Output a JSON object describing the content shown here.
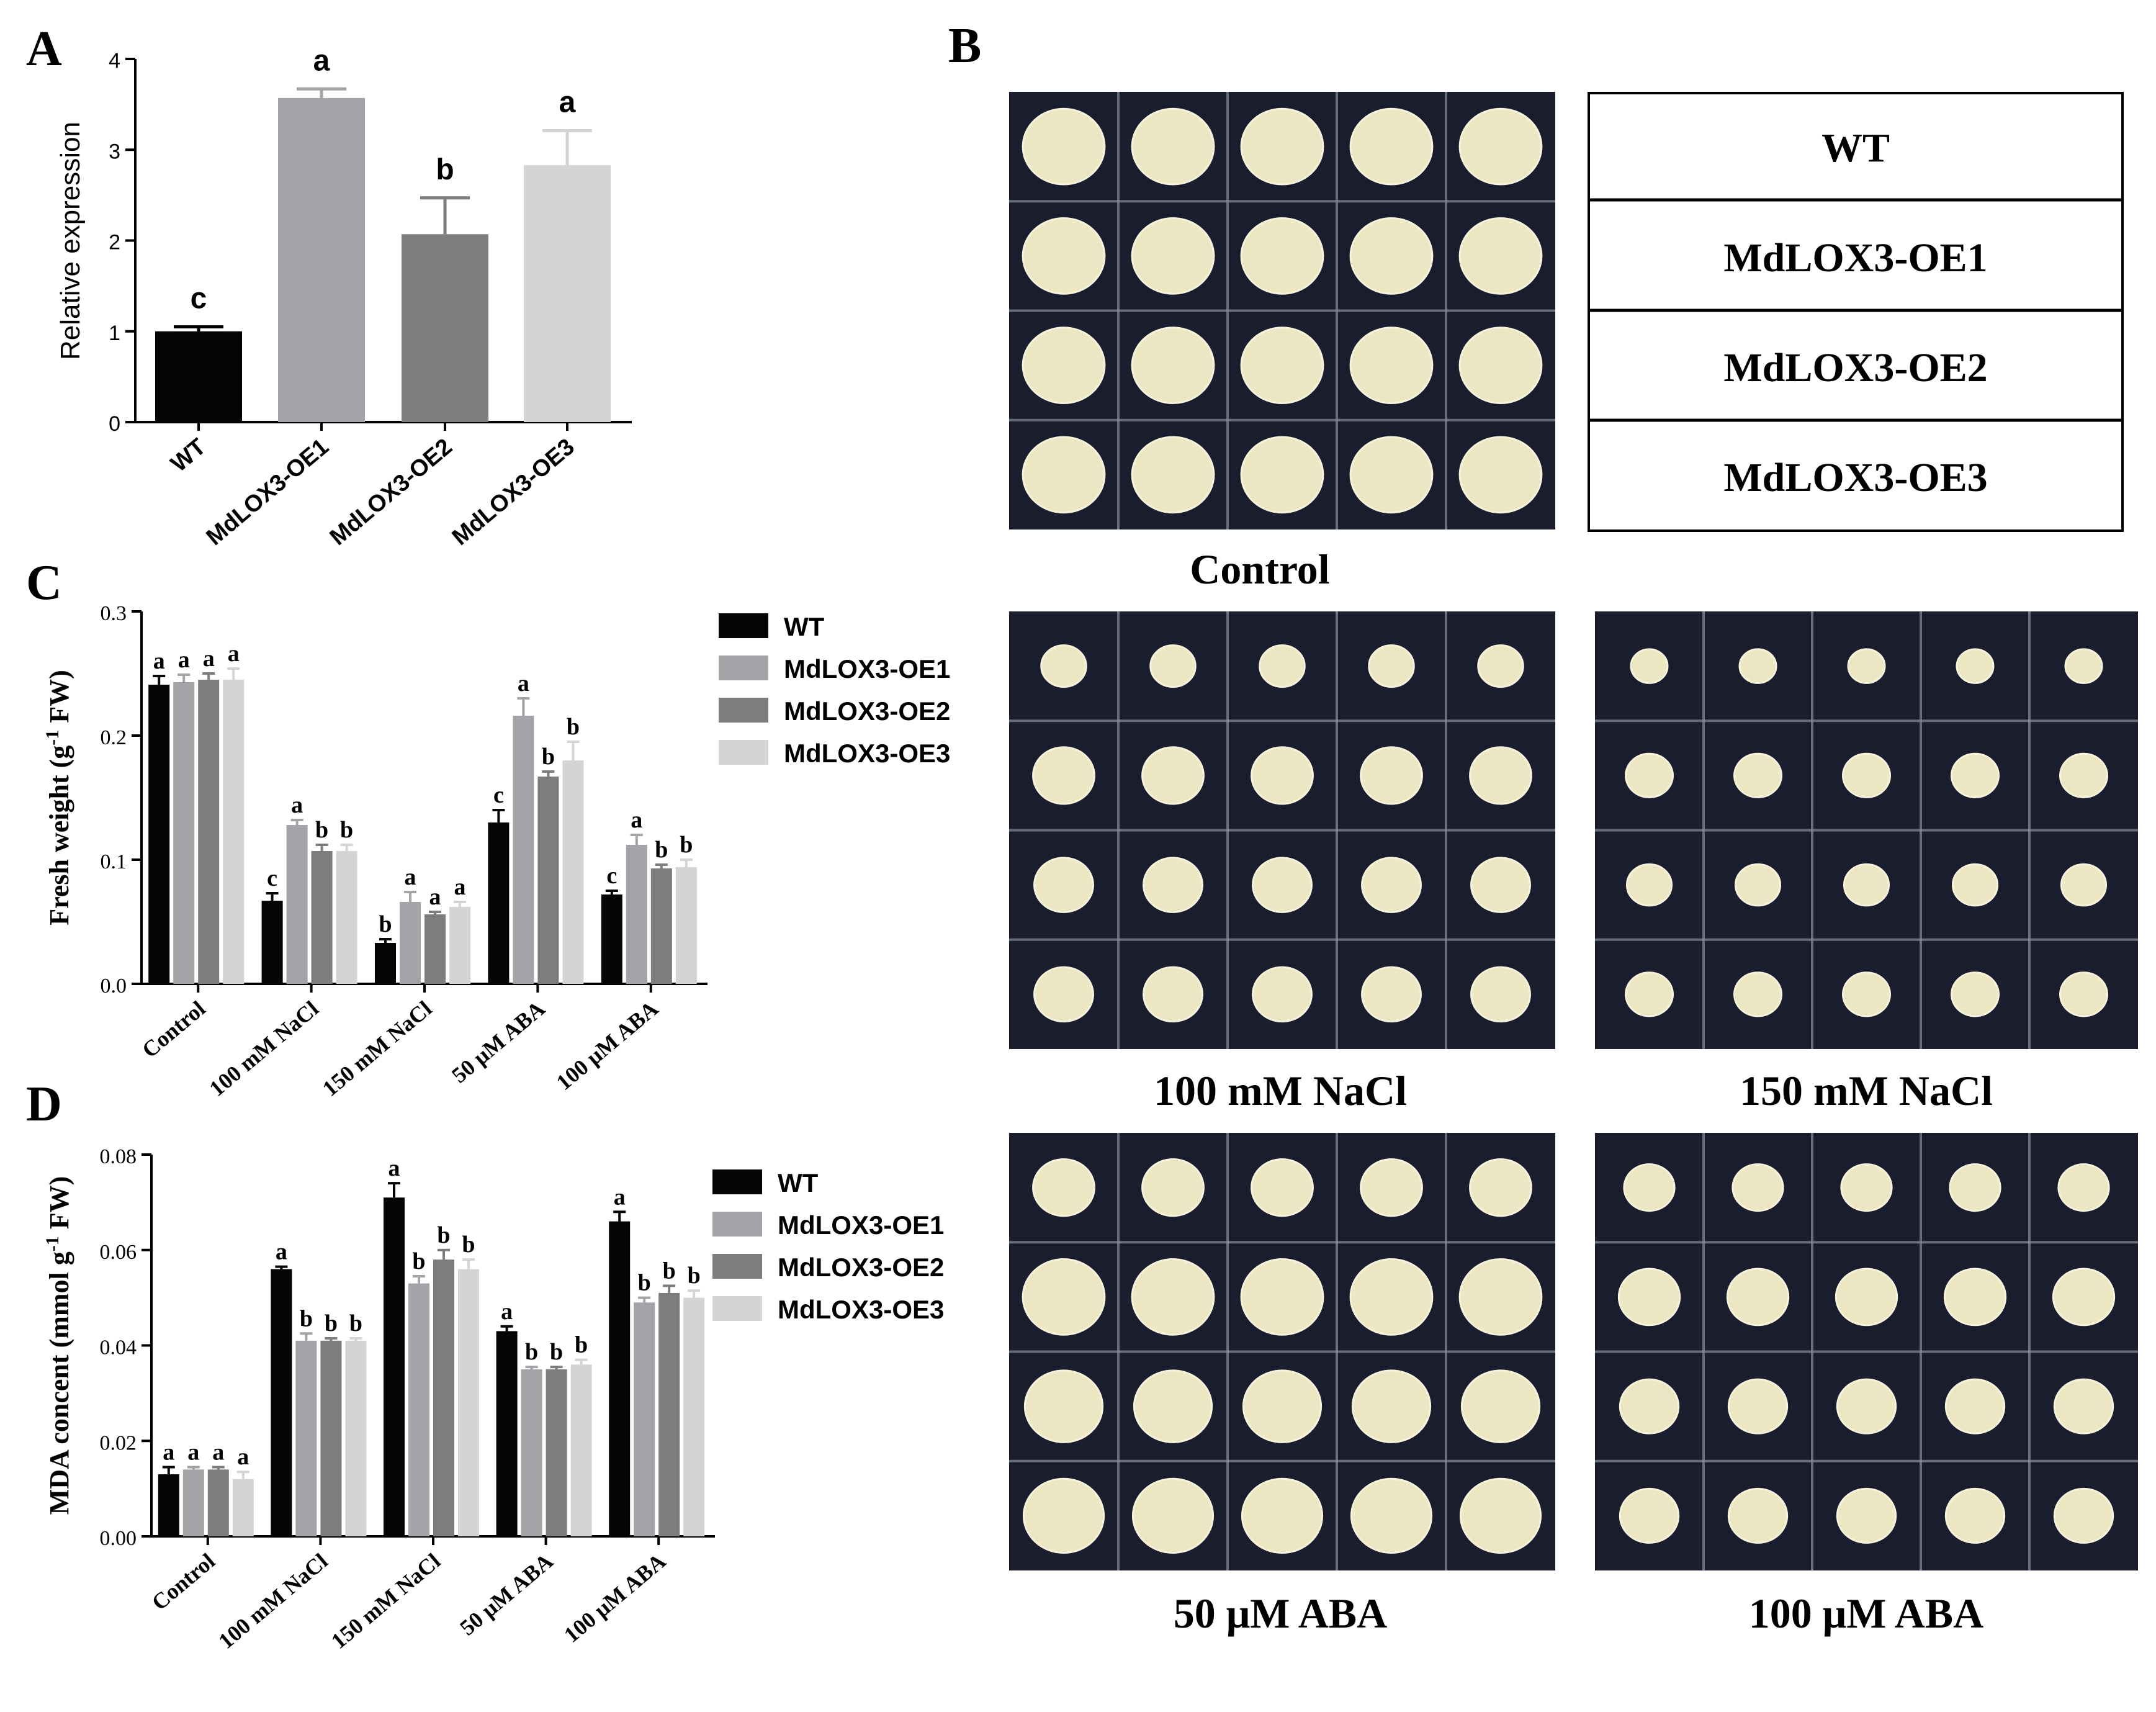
{
  "colors": {
    "WT": "#050505",
    "MdLOX3-OE1": "#a3a3a8",
    "MdLOX3-OE2": "#7d7d7f",
    "MdLOX3-OE3": "#d4d4d6",
    "callus": "#ece6c2",
    "plate": "#1a1d2e"
  },
  "chart_data": [
    {
      "panel": "A",
      "type": "bar",
      "title": "",
      "xlabel": "",
      "ylabel": "Relative expression",
      "ylim": [
        0,
        4
      ],
      "yticks": [
        "0",
        "1",
        "2",
        "3",
        "4"
      ],
      "categories": [
        "WT",
        "MdLOX3-OE1",
        "MdLOX3-OE2",
        "MdLOX3-OE3"
      ],
      "values": [
        1.0,
        3.57,
        2.07,
        2.83
      ],
      "errors": [
        0.05,
        0.1,
        0.4,
        0.38
      ],
      "letters": [
        "c",
        "a",
        "b",
        "a"
      ]
    },
    {
      "panel": "C",
      "type": "bar",
      "title": "",
      "xlabel": "",
      "ylabel": "Fresh weight (g",
      "ylabel_sup": "-1",
      "ylabel_end": "FW)",
      "ylim": [
        0,
        0.3
      ],
      "yticks": [
        "0.0",
        "0.1",
        "0.2",
        "0.3"
      ],
      "categories": [
        "Control",
        "100 mM NaCl",
        "150 mM NaCl",
        "50 μM ABA",
        "100 μM ABA"
      ],
      "legend": [
        "WT",
        "MdLOX3-OE1",
        "MdLOX3-OE2",
        "MdLOX3-OE3"
      ],
      "series": [
        {
          "name": "WT",
          "values": [
            0.241,
            0.067,
            0.033,
            0.13,
            0.072
          ],
          "errors": [
            0.007,
            0.006,
            0.003,
            0.01,
            0.003
          ],
          "letters": [
            "a",
            "c",
            "b",
            "c",
            "c"
          ]
        },
        {
          "name": "MdLOX3-OE1",
          "values": [
            0.243,
            0.128,
            0.066,
            0.216,
            0.112
          ],
          "errors": [
            0.006,
            0.004,
            0.008,
            0.014,
            0.008
          ],
          "letters": [
            "a",
            "a",
            "a",
            "a",
            "a"
          ]
        },
        {
          "name": "MdLOX3-OE2",
          "values": [
            0.245,
            0.107,
            0.056,
            0.167,
            0.093
          ],
          "errors": [
            0.005,
            0.005,
            0.002,
            0.004,
            0.003
          ],
          "letters": [
            "a",
            "b",
            "a",
            "b",
            "b"
          ]
        },
        {
          "name": "MdLOX3-OE3",
          "values": [
            0.245,
            0.107,
            0.062,
            0.18,
            0.094
          ],
          "errors": [
            0.009,
            0.005,
            0.004,
            0.015,
            0.006
          ],
          "letters": [
            "a",
            "b",
            "a",
            "b",
            "b"
          ]
        }
      ]
    },
    {
      "panel": "D",
      "type": "bar",
      "title": "",
      "xlabel": "",
      "ylabel": "MDA concent (mmol g",
      "ylabel_sup": "-1",
      "ylabel_end": "FW)",
      "ylim": [
        0,
        0.08
      ],
      "yticks": [
        "0.00",
        "0.02",
        "0.04",
        "0.06",
        "0.08"
      ],
      "categories": [
        "Control",
        "100 mM NaCl",
        "150 mM NaCl",
        "50 μM ABA",
        "100 μM ABA"
      ],
      "legend": [
        "WT",
        "MdLOX3-OE1",
        "MdLOX3-OE2",
        "MdLOX3-OE3"
      ],
      "series": [
        {
          "name": "WT",
          "values": [
            0.013,
            0.056,
            0.071,
            0.043,
            0.066
          ],
          "errors": [
            0.0015,
            0.0005,
            0.003,
            0.001,
            0.002
          ],
          "letters": [
            "a",
            "a",
            "a",
            "a",
            "a"
          ]
        },
        {
          "name": "MdLOX3-OE1",
          "values": [
            0.014,
            0.041,
            0.053,
            0.035,
            0.049
          ],
          "errors": [
            0.0005,
            0.0015,
            0.0015,
            0.0005,
            0.001
          ],
          "letters": [
            "a",
            "b",
            "b",
            "b",
            "b"
          ]
        },
        {
          "name": "MdLOX3-OE2",
          "values": [
            0.014,
            0.041,
            0.058,
            0.035,
            0.051
          ],
          "errors": [
            0.0005,
            0.0005,
            0.002,
            0.0005,
            0.0015
          ],
          "letters": [
            "a",
            "b",
            "b",
            "b",
            "b"
          ]
        },
        {
          "name": "MdLOX3-OE3",
          "values": [
            0.012,
            0.041,
            0.056,
            0.036,
            0.05
          ],
          "errors": [
            0.0015,
            0.0005,
            0.002,
            0.001,
            0.0015
          ],
          "letters": [
            "a",
            "b",
            "b",
            "b",
            "b"
          ]
        }
      ]
    }
  ],
  "panel_letters": {
    "A": "A",
    "B": "B",
    "C": "C",
    "D": "D"
  },
  "panel_B": {
    "legend_rows": [
      "WT",
      "MdLOX3-OE1",
      "MdLOX3-OE2",
      "MdLOX3-OE3"
    ],
    "photo_labels": {
      "control": "Control",
      "nacl100": "100 mM NaCl",
      "nacl150": "150 mM NaCl",
      "aba50": "50 μM ABA",
      "aba100": "100 μM ABA"
    },
    "grid": {
      "rows": 4,
      "cols": 5
    },
    "relative_callus_size": {
      "control": [
        1.0,
        1.0,
        1.0,
        1.0
      ],
      "nacl100": [
        0.55,
        0.75,
        0.72,
        0.72
      ],
      "nacl150": [
        0.45,
        0.58,
        0.55,
        0.58
      ],
      "aba50": [
        0.75,
        1.0,
        0.95,
        0.98
      ],
      "aba100": [
        0.62,
        0.75,
        0.72,
        0.72
      ]
    }
  }
}
